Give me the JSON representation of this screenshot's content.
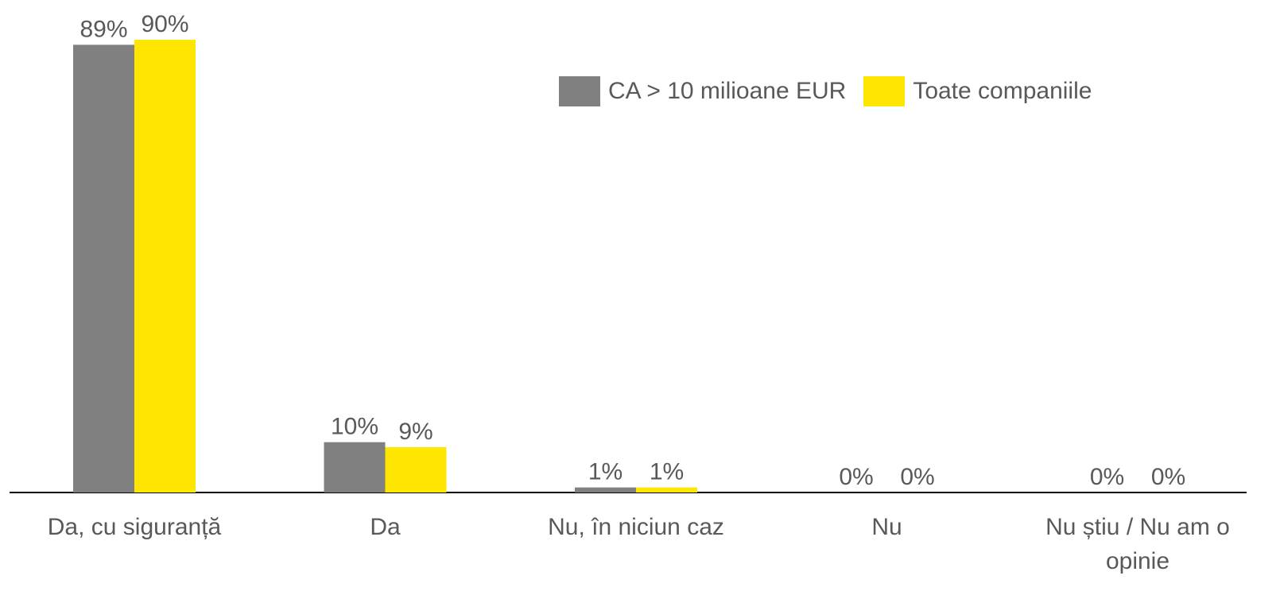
{
  "chart_data": {
    "type": "bar",
    "categories": [
      "Da, cu siguranță",
      "Da",
      "Nu, în niciun caz",
      "Nu",
      "Nu știu / Nu am o opinie"
    ],
    "series": [
      {
        "name": "CA > 10 milioane EUR",
        "color": "#808080",
        "values": [
          89,
          10,
          1,
          0,
          0
        ],
        "value_labels": [
          "89%",
          "10%",
          "1%",
          "0%",
          "0%"
        ]
      },
      {
        "name": "Toate companiile",
        "color": "#FFE600",
        "values": [
          90,
          9,
          1,
          0,
          0
        ],
        "value_labels": [
          "90%",
          "9%",
          "1%",
          "0%",
          "0%"
        ]
      }
    ],
    "legend": "top-right"
  }
}
